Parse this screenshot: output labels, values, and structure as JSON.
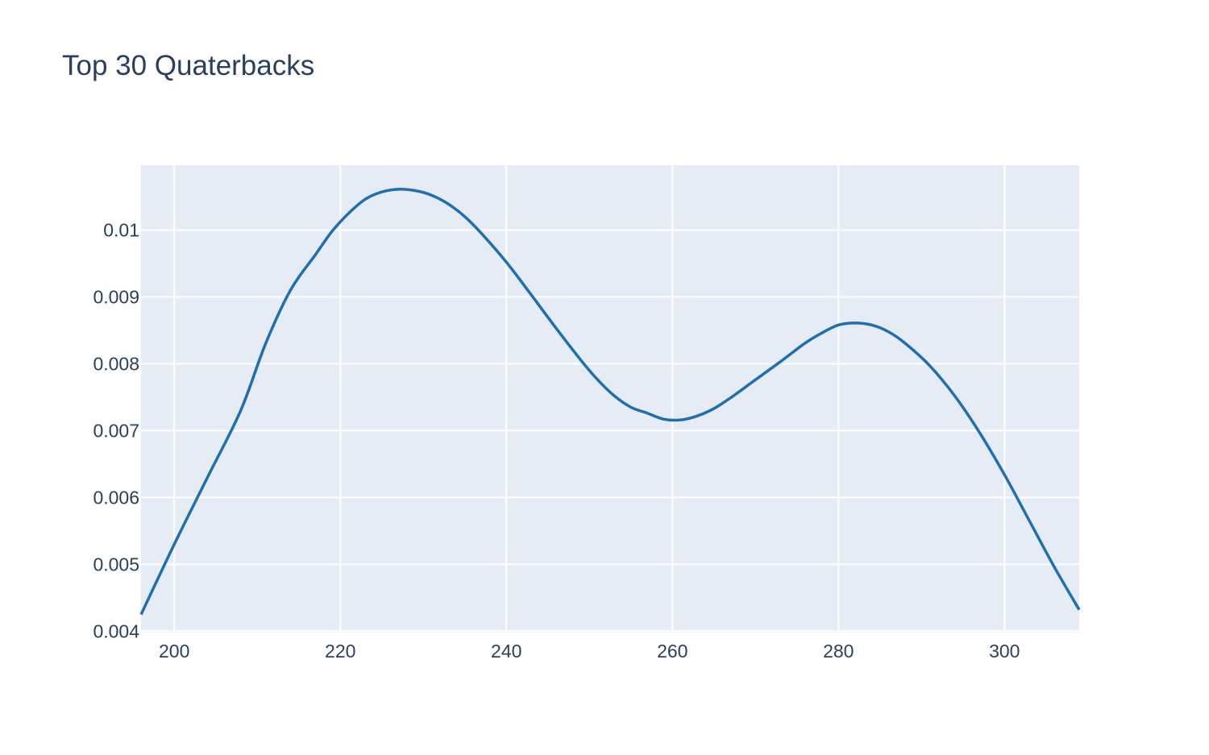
{
  "chart_data": {
    "type": "line",
    "title": "Top 30 Quaterbacks",
    "xlabel": "",
    "ylabel": "",
    "xlim": [
      196,
      309
    ],
    "ylim": [
      0.00398,
      0.01097
    ],
    "grid": true,
    "x_ticks": [
      200,
      220,
      240,
      260,
      280,
      300
    ],
    "y_ticks": [
      0.004,
      0.005,
      0.006,
      0.007,
      0.008,
      0.009,
      0.01
    ],
    "x_tick_labels": [
      "200",
      "220",
      "240",
      "260",
      "280",
      "300"
    ],
    "y_tick_labels": [
      "0.004",
      "0.005",
      "0.006",
      "0.007",
      "0.008",
      "0.009",
      "0.01"
    ],
    "colors": {
      "line": "#1f6fb0",
      "plot_bg": "#e5ecf6",
      "grid": "#ffffff",
      "text": "#2a3f5f"
    },
    "series": [
      {
        "x": [
          196,
          200,
          204,
          208,
          211,
          214,
          217,
          219,
          221,
          223,
          225,
          227,
          229,
          231,
          233,
          235,
          237,
          240,
          243,
          246,
          249,
          251,
          253,
          255,
          257,
          259,
          261,
          263,
          265,
          267,
          270,
          273,
          276,
          278,
          280,
          282,
          284,
          286,
          288,
          291,
          294,
          297,
          300,
          303,
          306,
          309
        ],
        "y": [
          0.00425,
          0.0053,
          0.0063,
          0.0073,
          0.0083,
          0.0091,
          0.00963,
          0.00998,
          0.01025,
          0.01046,
          0.01057,
          0.01061,
          0.01059,
          0.01052,
          0.01039,
          0.0102,
          0.00995,
          0.00952,
          0.00903,
          0.00853,
          0.00805,
          0.00776,
          0.00752,
          0.00735,
          0.00726,
          0.00717,
          0.00716,
          0.00722,
          0.00733,
          0.00749,
          0.00776,
          0.00803,
          0.00831,
          0.00846,
          0.00858,
          0.00861,
          0.00858,
          0.00848,
          0.00831,
          0.00797,
          0.00752,
          0.00697,
          0.00634,
          0.00565,
          0.00496,
          0.00432
        ]
      }
    ]
  }
}
